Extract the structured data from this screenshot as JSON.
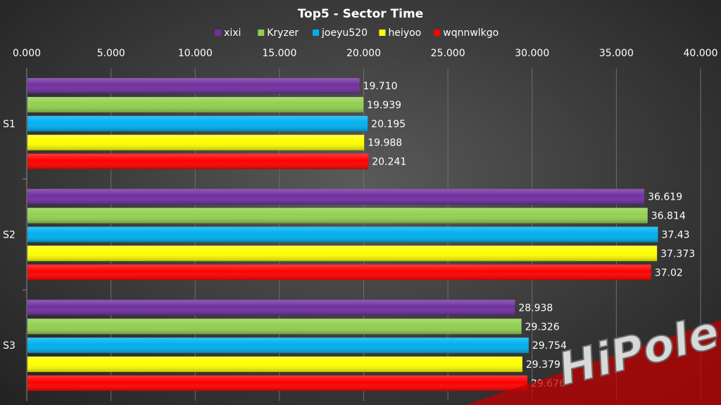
{
  "chart_data": {
    "type": "bar",
    "orientation": "horizontal",
    "title": "Top5 - Sector Time",
    "categories": [
      "S1",
      "S2",
      "S3"
    ],
    "series": [
      {
        "name": "xixi",
        "color": "#7030a0",
        "values": [
          19.71,
          36.619,
          28.938
        ],
        "labels": [
          "19.710",
          "36.619",
          "28.938"
        ]
      },
      {
        "name": "Kryzer",
        "color": "#92d050",
        "values": [
          19.939,
          36.814,
          29.326
        ],
        "labels": [
          "19.939",
          "36.814",
          "29.326"
        ]
      },
      {
        "name": "joeyu520",
        "color": "#00b0f0",
        "values": [
          20.195,
          37.43,
          29.754
        ],
        "labels": [
          "20.195",
          "37.43",
          "29.754"
        ]
      },
      {
        "name": "heiyoo",
        "color": "#ffff00",
        "values": [
          19.988,
          37.373,
          29.379
        ],
        "labels": [
          "19.988",
          "37.373",
          "29.379"
        ]
      },
      {
        "name": "wqnnwlkgo",
        "color": "#ff0000",
        "values": [
          20.241,
          37.02,
          29.676
        ],
        "labels": [
          "20.241",
          "37.02",
          "29.676"
        ]
      }
    ],
    "xlim": [
      0,
      40
    ],
    "x_ticks": [
      "0.000",
      "5.000",
      "10.000",
      "15.000",
      "20.000",
      "25.000",
      "30.000",
      "35.000",
      "40.000"
    ],
    "x_axis_position": "top",
    "legend_position": "top",
    "grid": true
  },
  "watermark": {
    "text": "HiPole"
  }
}
